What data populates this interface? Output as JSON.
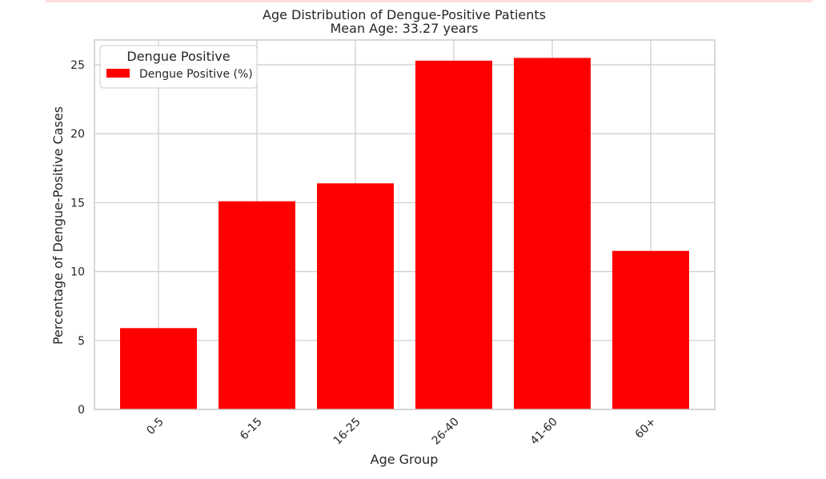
{
  "chart_data": {
    "type": "bar",
    "title": "Age Distribution of Dengue-Positive Patients",
    "subtitle": "Mean Age: 33.27 years",
    "xlabel": "Age Group",
    "ylabel": "Percentage of Dengue-Positive Cases",
    "categories": [
      "0-5",
      "6-15",
      "16-25",
      "26-40",
      "41-60",
      "60+"
    ],
    "series": [
      {
        "name": "Dengue Positive (%)",
        "values": [
          5.9,
          15.1,
          16.4,
          25.3,
          25.5,
          11.5
        ]
      }
    ],
    "ylim": [
      0,
      26.8
    ],
    "yticks": [
      0,
      5,
      10,
      15,
      20,
      25
    ],
    "grid": true,
    "legend": {
      "title": "Dengue Positive",
      "position": "top-left"
    },
    "colors": {
      "bar": "#ff0000",
      "grid": "#cccccc",
      "frame": "#cccccc",
      "text": "#262626"
    }
  }
}
